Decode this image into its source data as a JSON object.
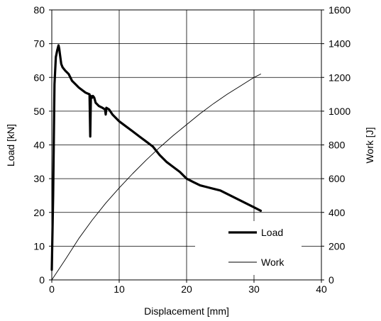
{
  "chart_data": {
    "type": "line",
    "xlabel": "Displacement  [mm]",
    "ylabel_left": "Load [kN]",
    "ylabel_right": "Work [J]",
    "x_range": [
      0,
      40
    ],
    "y_left_range": [
      0,
      80
    ],
    "y_right_range": [
      0,
      1600
    ],
    "x_ticks": [
      "0",
      "10",
      "20",
      "30",
      "40"
    ],
    "y_left_ticks": [
      "0",
      "10",
      "20",
      "30",
      "40",
      "50",
      "60",
      "70",
      "80"
    ],
    "y_right_ticks": [
      "0",
      "200",
      "400",
      "600",
      "800",
      "1000",
      "1200",
      "1400",
      "1600"
    ],
    "grid": true,
    "legend_position": "bottom-right",
    "series": [
      {
        "name": "Load",
        "axis": "left",
        "style": "thick",
        "x": [
          0,
          0.2,
          0.4,
          0.6,
          0.8,
          1.0,
          1.1,
          1.2,
          1.4,
          1.6,
          2.0,
          2.5,
          3.0,
          3.5,
          4.0,
          5.0,
          5.6,
          5.7,
          5.8,
          6.0,
          6.1,
          6.3,
          6.5,
          7.0,
          7.5,
          7.9,
          8.0,
          8.1,
          8.5,
          9.0,
          10.0,
          11.0,
          12.0,
          13.0,
          14.0,
          15.0,
          16.0,
          17.0,
          18.0,
          19.0,
          20.0,
          21.0,
          22.0,
          23.0,
          24.0,
          25.0,
          26.0,
          27.0,
          28.0,
          29.0,
          30.0,
          31.0
        ],
        "y": [
          3,
          25,
          58,
          66,
          68,
          69.5,
          68.5,
          67,
          64,
          63,
          62,
          61,
          59,
          58,
          57,
          55.5,
          55,
          42.5,
          54.5,
          54,
          54.5,
          54,
          52.5,
          51.5,
          51,
          50.5,
          49,
          51,
          50.5,
          49,
          47,
          45.5,
          44,
          42.5,
          41,
          39.5,
          37,
          35,
          33.5,
          32,
          30,
          29,
          28,
          27.5,
          27,
          26.5,
          25.5,
          24.5,
          23.5,
          22.5,
          21.5,
          20.5
        ]
      },
      {
        "name": "Work",
        "axis": "right",
        "style": "thin",
        "x": [
          0,
          2,
          4,
          6,
          8,
          10,
          12,
          14,
          16,
          18,
          20,
          22,
          24,
          26,
          28,
          30,
          31
        ],
        "y": [
          0,
          120,
          245,
          355,
          455,
          545,
          630,
          710,
          785,
          855,
          920,
          985,
          1045,
          1100,
          1150,
          1200,
          1220
        ]
      }
    ]
  }
}
